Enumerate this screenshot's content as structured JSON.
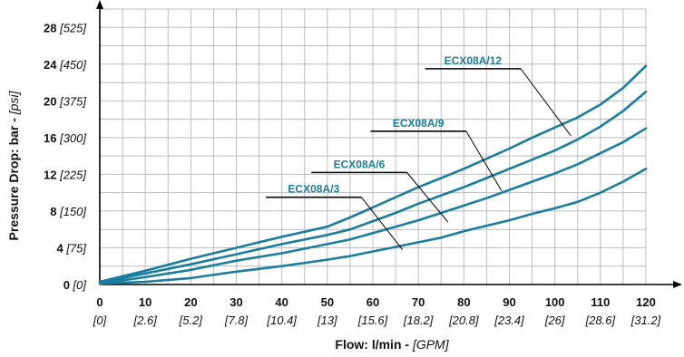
{
  "chart_data": {
    "type": "line",
    "title": "",
    "xlabel": "Flow: l/min - ",
    "xlabel_alt": "[GPM]",
    "ylabel": "Pressure Drop: bar - ",
    "ylabel_alt": "[psi]",
    "xlim": [
      0,
      120
    ],
    "ylim": [
      0,
      30
    ],
    "grid": true,
    "x_ticks": [
      {
        "value": 0,
        "label": "0",
        "alt": "[0]"
      },
      {
        "value": 10,
        "label": "10",
        "alt": "[2.6]"
      },
      {
        "value": 20,
        "label": "20",
        "alt": "[5.2]"
      },
      {
        "value": 30,
        "label": "30",
        "alt": "[7.8]"
      },
      {
        "value": 40,
        "label": "40",
        "alt": "[10.4]"
      },
      {
        "value": 50,
        "label": "50",
        "alt": "[13]"
      },
      {
        "value": 60,
        "label": "60",
        "alt": "[15.6]"
      },
      {
        "value": 70,
        "label": "70",
        "alt": "[18.2]"
      },
      {
        "value": 80,
        "label": "80",
        "alt": "[20.8]"
      },
      {
        "value": 90,
        "label": "90",
        "alt": "[23.4]"
      },
      {
        "value": 100,
        "label": "100",
        "alt": "[26]"
      },
      {
        "value": 110,
        "label": "110",
        "alt": "[28.6]"
      },
      {
        "value": 120,
        "label": "120",
        "alt": "[31.2]"
      }
    ],
    "y_ticks": [
      {
        "value": 0,
        "label": "0",
        "alt": "[0]"
      },
      {
        "value": 4,
        "label": "4",
        "alt": "[75]"
      },
      {
        "value": 8,
        "label": "8",
        "alt": "[150]"
      },
      {
        "value": 12,
        "label": "12",
        "alt": "[225]"
      },
      {
        "value": 16,
        "label": "16",
        "alt": "[300]"
      },
      {
        "value": 20,
        "label": "20",
        "alt": "[375]"
      },
      {
        "value": 24,
        "label": "24",
        "alt": "[450]"
      },
      {
        "value": 28,
        "label": "28",
        "alt": "[525]"
      }
    ],
    "x_grid_step": 5,
    "y_grid_step": 2,
    "series_color": "#1a7d9e",
    "series": [
      {
        "name": "ECX08A/12",
        "x": [
          0,
          10,
          20,
          30,
          40,
          50,
          55,
          60,
          65,
          70,
          75,
          80,
          85,
          90,
          95,
          100,
          105,
          110,
          115,
          120
        ],
        "y": [
          0.3,
          1.5,
          2.8,
          4.0,
          5.2,
          6.3,
          7.3,
          8.4,
          9.5,
          10.6,
          11.6,
          12.6,
          13.7,
          14.8,
          16.0,
          17.1,
          18.2,
          19.6,
          21.4,
          23.8
        ]
      },
      {
        "name": "ECX08A/9",
        "x": [
          0,
          10,
          20,
          30,
          40,
          50,
          55,
          60,
          65,
          70,
          75,
          80,
          85,
          90,
          95,
          100,
          105,
          110,
          115,
          120
        ],
        "y": [
          0.2,
          1.2,
          2.2,
          3.3,
          4.4,
          5.4,
          6.0,
          6.9,
          7.8,
          8.8,
          9.7,
          10.6,
          11.6,
          12.6,
          13.6,
          14.6,
          15.8,
          17.2,
          18.9,
          21.0
        ]
      },
      {
        "name": "ECX08A/6",
        "x": [
          0,
          10,
          20,
          30,
          40,
          50,
          55,
          60,
          65,
          70,
          75,
          80,
          85,
          90,
          95,
          100,
          105,
          110,
          115,
          120
        ],
        "y": [
          0.1,
          0.8,
          1.6,
          2.6,
          3.4,
          4.4,
          4.9,
          5.6,
          6.3,
          7.0,
          7.8,
          8.6,
          9.4,
          10.3,
          11.2,
          12.1,
          13.1,
          14.3,
          15.5,
          17.0
        ]
      },
      {
        "name": "ECX08A/3",
        "x": [
          0,
          10,
          20,
          30,
          40,
          50,
          55,
          60,
          65,
          70,
          75,
          80,
          85,
          90,
          95,
          100,
          105,
          110,
          115,
          120
        ],
        "y": [
          0.1,
          0.3,
          0.7,
          1.4,
          2.0,
          2.7,
          3.1,
          3.6,
          4.1,
          4.6,
          5.1,
          5.8,
          6.4,
          7.0,
          7.7,
          8.3,
          9.0,
          10.0,
          11.2,
          12.6
        ]
      }
    ],
    "annotations": [
      {
        "series": "ECX08A/12",
        "text": "ECX08A/12",
        "x0": 71.5,
        "x1": 92.5,
        "y": 23.5,
        "tx": 103.5,
        "ty": 16.2
      },
      {
        "series": "ECX08A/9",
        "text": "ECX08A/9",
        "x0": 59.5,
        "x1": 80.5,
        "y": 16.7,
        "tx": 88.3,
        "ty": 10.2
      },
      {
        "series": "ECX08A/6",
        "text": "ECX08A/6",
        "x0": 46.5,
        "x1": 67.5,
        "y": 12.2,
        "tx": 76.5,
        "ty": 6.8
      },
      {
        "series": "ECX08A/3",
        "text": "ECX08A/3",
        "x0": 36.5,
        "x1": 57.5,
        "y": 9.5,
        "tx": 66.5,
        "ty": 3.8
      }
    ]
  }
}
